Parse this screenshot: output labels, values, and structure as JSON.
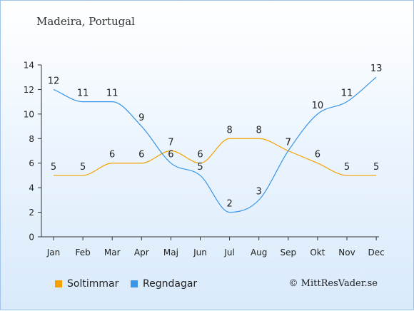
{
  "title": "Madeira, Portugal",
  "copyright": "© MittResVader.se",
  "chart_data": {
    "type": "line",
    "categories": [
      "Jan",
      "Feb",
      "Mar",
      "Apr",
      "Maj",
      "Jun",
      "Jul",
      "Aug",
      "Sep",
      "Okt",
      "Nov",
      "Dec"
    ],
    "ylim": [
      0,
      14
    ],
    "yticks": [
      0,
      2,
      4,
      6,
      8,
      10,
      12,
      14
    ],
    "grid": false,
    "legend_position": "bottom-left",
    "series": [
      {
        "name": "Soltimmar",
        "color": "#f5a000",
        "values": [
          5,
          5,
          6,
          6,
          7,
          6,
          8,
          8,
          7,
          6,
          5,
          5
        ],
        "labels": [
          "5",
          "5",
          "6",
          "6",
          "7",
          "6",
          "8",
          "8",
          "7",
          "6",
          "5",
          "5"
        ]
      },
      {
        "name": "Regndagar",
        "color": "#3a95e6",
        "values": [
          12,
          11,
          11,
          9,
          6,
          5,
          2,
          3,
          7,
          10,
          11,
          13
        ],
        "labels": [
          "12",
          "11",
          "11",
          "9",
          "6",
          "5",
          "2",
          "3",
          "7",
          "10",
          "11",
          "13"
        ]
      }
    ]
  }
}
